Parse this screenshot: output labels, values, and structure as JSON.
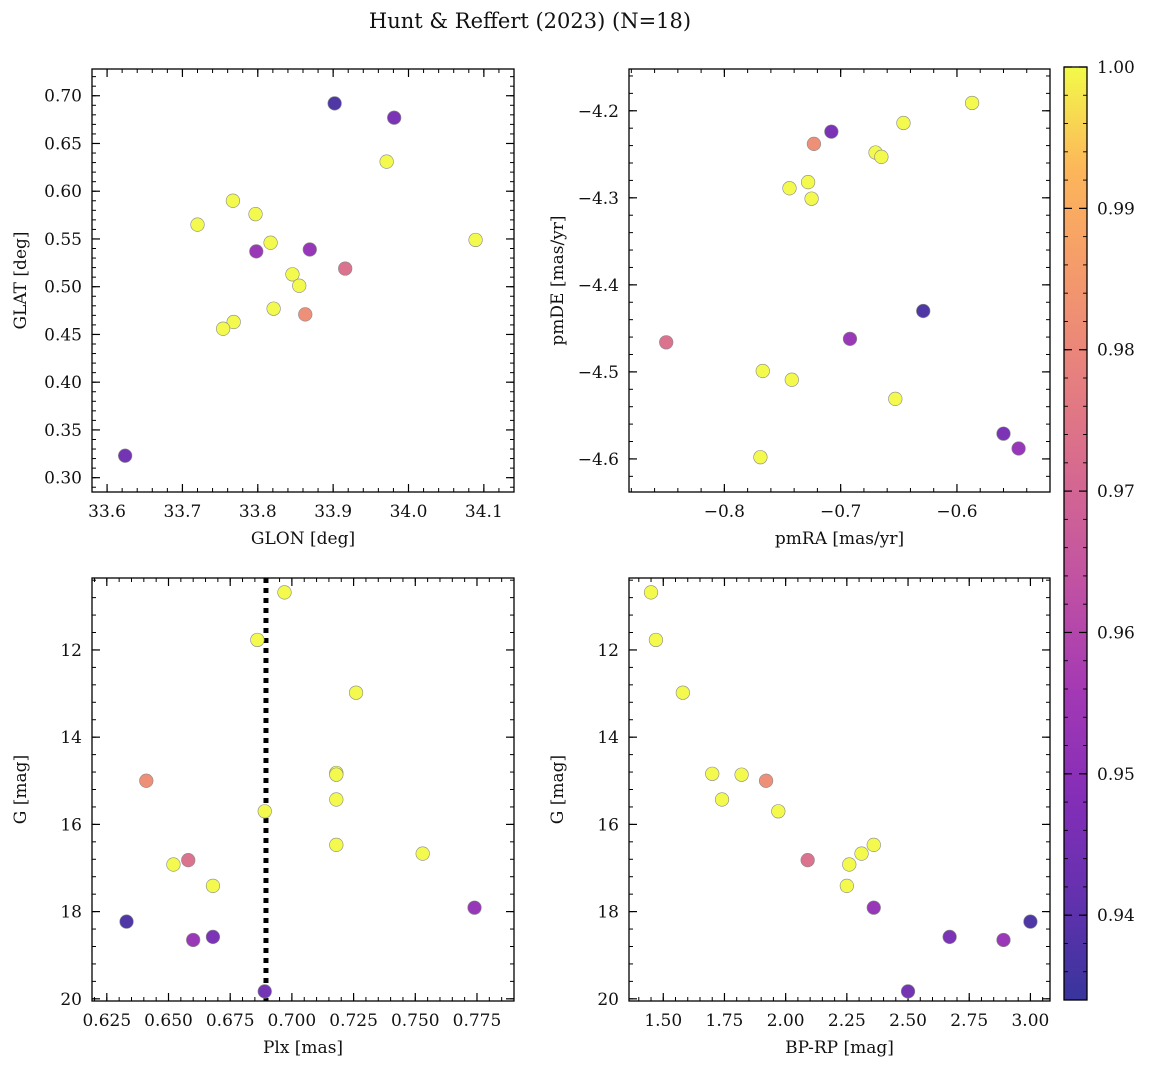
{
  "figure": {
    "title": "Hunt & Reffert (2023) (N=18)"
  },
  "colorbar": {
    "min": 0.934,
    "max": 1.0,
    "ticks": [
      0.94,
      0.95,
      0.96,
      0.97,
      0.98,
      0.99,
      1.0
    ],
    "tick_labels": [
      "0.94",
      "0.95",
      "0.96",
      "0.97",
      "0.98",
      "0.99",
      "1.00"
    ],
    "colormap": "plasma"
  },
  "chart_data": [
    {
      "type": "scatter",
      "id": "glon-glat",
      "xlabel": "GLON [deg]",
      "ylabel": "GLAT [deg]",
      "xlim": [
        33.58,
        34.14
      ],
      "ylim": [
        0.285,
        0.728
      ],
      "y_inverted": false,
      "xticks": [
        33.6,
        33.7,
        33.8,
        33.9,
        34.0,
        34.1
      ],
      "xtick_labels": [
        "33.6",
        "33.7",
        "33.8",
        "33.9",
        "34.0",
        "34.1"
      ],
      "yticks": [
        0.3,
        0.35,
        0.4,
        0.45,
        0.5,
        0.55,
        0.6,
        0.65,
        0.7
      ],
      "ytick_labels": [
        "0.30",
        "0.35",
        "0.40",
        "0.45",
        "0.50",
        "0.55",
        "0.60",
        "0.65",
        "0.70"
      ],
      "points": [
        {
          "x": 33.624,
          "y": 0.323,
          "c": 0.944
        },
        {
          "x": 33.902,
          "y": 0.692,
          "c": 0.937
        },
        {
          "x": 33.981,
          "y": 0.677,
          "c": 0.946
        },
        {
          "x": 33.971,
          "y": 0.631,
          "c": 1.0
        },
        {
          "x": 33.767,
          "y": 0.59,
          "c": 1.0
        },
        {
          "x": 33.797,
          "y": 0.576,
          "c": 1.0
        },
        {
          "x": 33.72,
          "y": 0.565,
          "c": 1.0
        },
        {
          "x": 34.089,
          "y": 0.549,
          "c": 1.0
        },
        {
          "x": 33.817,
          "y": 0.546,
          "c": 1.0
        },
        {
          "x": 33.798,
          "y": 0.537,
          "c": 0.953
        },
        {
          "x": 33.869,
          "y": 0.539,
          "c": 0.952
        },
        {
          "x": 33.916,
          "y": 0.519,
          "c": 0.973
        },
        {
          "x": 33.846,
          "y": 0.513,
          "c": 1.0
        },
        {
          "x": 33.855,
          "y": 0.501,
          "c": 1.0
        },
        {
          "x": 33.821,
          "y": 0.477,
          "c": 1.0
        },
        {
          "x": 33.863,
          "y": 0.471,
          "c": 0.982
        },
        {
          "x": 33.768,
          "y": 0.463,
          "c": 1.0
        },
        {
          "x": 33.754,
          "y": 0.456,
          "c": 1.0
        }
      ]
    },
    {
      "type": "scatter",
      "id": "pmra-pmde",
      "xlabel": "pmRA [mas/yr]",
      "ylabel": "pmDE [mas/yr]",
      "xlim": [
        -0.882,
        -0.52
      ],
      "ylim": [
        -4.638,
        -4.152
      ],
      "y_inverted": false,
      "xticks": [
        -0.8,
        -0.7,
        -0.6
      ],
      "xtick_labels": [
        "−0.8",
        "−0.7",
        "−0.6"
      ],
      "yticks": [
        -4.6,
        -4.5,
        -4.4,
        -4.3,
        -4.2
      ],
      "ytick_labels": [
        "−4.6",
        "−4.5",
        "−4.4",
        "−4.3",
        "−4.2"
      ],
      "points": [
        {
          "x": -0.587,
          "y": -4.191,
          "c": 1.0
        },
        {
          "x": -0.708,
          "y": -4.224,
          "c": 0.946
        },
        {
          "x": -0.646,
          "y": -4.214,
          "c": 1.0
        },
        {
          "x": -0.723,
          "y": -4.238,
          "c": 0.982
        },
        {
          "x": -0.67,
          "y": -4.248,
          "c": 1.0
        },
        {
          "x": -0.665,
          "y": -4.253,
          "c": 1.0
        },
        {
          "x": -0.728,
          "y": -4.282,
          "c": 1.0
        },
        {
          "x": -0.744,
          "y": -4.289,
          "c": 1.0
        },
        {
          "x": -0.725,
          "y": -4.301,
          "c": 1.0
        },
        {
          "x": -0.629,
          "y": -4.43,
          "c": 0.937
        },
        {
          "x": -0.692,
          "y": -4.462,
          "c": 0.953
        },
        {
          "x": -0.85,
          "y": -4.466,
          "c": 0.973
        },
        {
          "x": -0.767,
          "y": -4.499,
          "c": 1.0
        },
        {
          "x": -0.742,
          "y": -4.509,
          "c": 1.0
        },
        {
          "x": -0.653,
          "y": -4.531,
          "c": 1.0
        },
        {
          "x": -0.56,
          "y": -4.571,
          "c": 0.946
        },
        {
          "x": -0.547,
          "y": -4.588,
          "c": 0.952
        },
        {
          "x": -0.769,
          "y": -4.598,
          "c": 1.0
        }
      ]
    },
    {
      "type": "scatter",
      "id": "plx-g",
      "xlabel": "Plx [mas]",
      "ylabel": "G [mag]",
      "xlim": [
        0.619,
        0.79
      ],
      "ylim": [
        10.35,
        20.05
      ],
      "y_inverted": true,
      "xticks": [
        0.625,
        0.65,
        0.675,
        0.7,
        0.725,
        0.75,
        0.775
      ],
      "xtick_labels": [
        "0.625",
        "0.650",
        "0.675",
        "0.700",
        "0.725",
        "0.750",
        "0.775"
      ],
      "yticks": [
        12,
        14,
        16,
        18,
        20
      ],
      "ytick_labels": [
        "12",
        "14",
        "16",
        "18",
        "20"
      ],
      "vline": {
        "x": 0.6895,
        "style": "dotted",
        "color": "#000000"
      },
      "points": [
        {
          "x": 0.697,
          "y": 10.68,
          "c": 1.0
        },
        {
          "x": 0.686,
          "y": 11.77,
          "c": 1.0
        },
        {
          "x": 0.726,
          "y": 12.98,
          "c": 1.0
        },
        {
          "x": 0.641,
          "y": 15.0,
          "c": 0.982
        },
        {
          "x": 0.718,
          "y": 14.82,
          "c": 1.0
        },
        {
          "x": 0.718,
          "y": 14.86,
          "c": 1.0
        },
        {
          "x": 0.718,
          "y": 15.43,
          "c": 1.0
        },
        {
          "x": 0.689,
          "y": 15.7,
          "c": 1.0
        },
        {
          "x": 0.718,
          "y": 16.47,
          "c": 1.0
        },
        {
          "x": 0.753,
          "y": 16.67,
          "c": 1.0
        },
        {
          "x": 0.658,
          "y": 16.82,
          "c": 0.973
        },
        {
          "x": 0.652,
          "y": 16.92,
          "c": 1.0
        },
        {
          "x": 0.668,
          "y": 17.41,
          "c": 1.0
        },
        {
          "x": 0.774,
          "y": 17.91,
          "c": 0.952
        },
        {
          "x": 0.633,
          "y": 18.23,
          "c": 0.937
        },
        {
          "x": 0.668,
          "y": 18.58,
          "c": 0.946
        },
        {
          "x": 0.66,
          "y": 18.65,
          "c": 0.953
        },
        {
          "x": 0.689,
          "y": 19.83,
          "c": 0.944
        }
      ]
    },
    {
      "type": "scatter",
      "id": "bprp-g",
      "xlabel": "BP-RP [mag]",
      "ylabel": "G [mag]",
      "xlim": [
        1.36,
        3.08
      ],
      "ylim": [
        10.35,
        20.05
      ],
      "y_inverted": true,
      "xticks": [
        1.5,
        1.75,
        2.0,
        2.25,
        2.5,
        2.75,
        3.0
      ],
      "xtick_labels": [
        "1.50",
        "1.75",
        "2.00",
        "2.25",
        "2.50",
        "2.75",
        "3.00"
      ],
      "yticks": [
        12,
        14,
        16,
        18,
        20
      ],
      "ytick_labels": [
        "12",
        "14",
        "16",
        "18",
        "20"
      ],
      "points": [
        {
          "x": 1.45,
          "y": 10.68,
          "c": 1.0
        },
        {
          "x": 1.47,
          "y": 11.77,
          "c": 1.0
        },
        {
          "x": 1.58,
          "y": 12.98,
          "c": 1.0
        },
        {
          "x": 1.7,
          "y": 14.84,
          "c": 1.0
        },
        {
          "x": 1.82,
          "y": 14.86,
          "c": 1.0
        },
        {
          "x": 1.92,
          "y": 15.0,
          "c": 0.982
        },
        {
          "x": 1.74,
          "y": 15.43,
          "c": 1.0
        },
        {
          "x": 1.97,
          "y": 15.7,
          "c": 1.0
        },
        {
          "x": 2.36,
          "y": 16.47,
          "c": 1.0
        },
        {
          "x": 2.31,
          "y": 16.67,
          "c": 1.0
        },
        {
          "x": 2.09,
          "y": 16.82,
          "c": 0.973
        },
        {
          "x": 2.26,
          "y": 16.92,
          "c": 1.0
        },
        {
          "x": 2.25,
          "y": 17.41,
          "c": 1.0
        },
        {
          "x": 2.36,
          "y": 17.91,
          "c": 0.952
        },
        {
          "x": 3.0,
          "y": 18.23,
          "c": 0.937
        },
        {
          "x": 2.67,
          "y": 18.58,
          "c": 0.946
        },
        {
          "x": 2.89,
          "y": 18.65,
          "c": 0.953
        },
        {
          "x": 2.5,
          "y": 19.83,
          "c": 0.944
        }
      ]
    }
  ]
}
